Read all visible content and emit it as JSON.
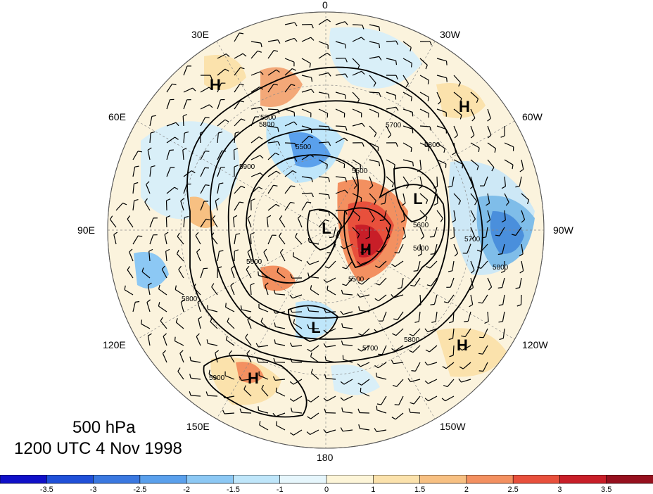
{
  "title": {
    "level": "500 hPa",
    "datetime": "1200 UTC 4 Nov 1998"
  },
  "longitude_labels": [
    "0",
    "30W",
    "60W",
    "90W",
    "120W",
    "150W",
    "180",
    "150E",
    "120E",
    "90E",
    "60E",
    "30E"
  ],
  "pressure_centers": [
    {
      "label": "H",
      "kind": "high"
    },
    {
      "label": "H",
      "kind": "high"
    },
    {
      "label": "H",
      "kind": "high"
    },
    {
      "label": "H",
      "kind": "high"
    },
    {
      "label": "H",
      "kind": "high"
    },
    {
      "label": "L",
      "kind": "low"
    },
    {
      "label": "L",
      "kind": "low"
    },
    {
      "label": "L",
      "kind": "low"
    }
  ],
  "contour_labels": [
    "5700",
    "5800",
    "5800",
    "5500",
    "5500",
    "5600",
    "5700",
    "5800",
    "5500",
    "5700",
    "5800",
    "5900",
    "5800",
    "5900",
    "5600",
    "5800",
    "5600"
  ],
  "colorbar": {
    "tick_labels": [
      "-3.5",
      "-3",
      "-2.5",
      "-2",
      "-1.5",
      "-1",
      "0",
      "1",
      "1.5",
      "2",
      "2.5",
      "3",
      "3.5"
    ],
    "colors": [
      "#1010c8",
      "#2050d8",
      "#3a78e0",
      "#5aa0ec",
      "#8cc8f4",
      "#bfe6fa",
      "#e6f6fc",
      "#fdf5d8",
      "#fbe2ac",
      "#f7c082",
      "#f39060",
      "#e8503c",
      "#c81e28",
      "#96101e"
    ]
  }
}
